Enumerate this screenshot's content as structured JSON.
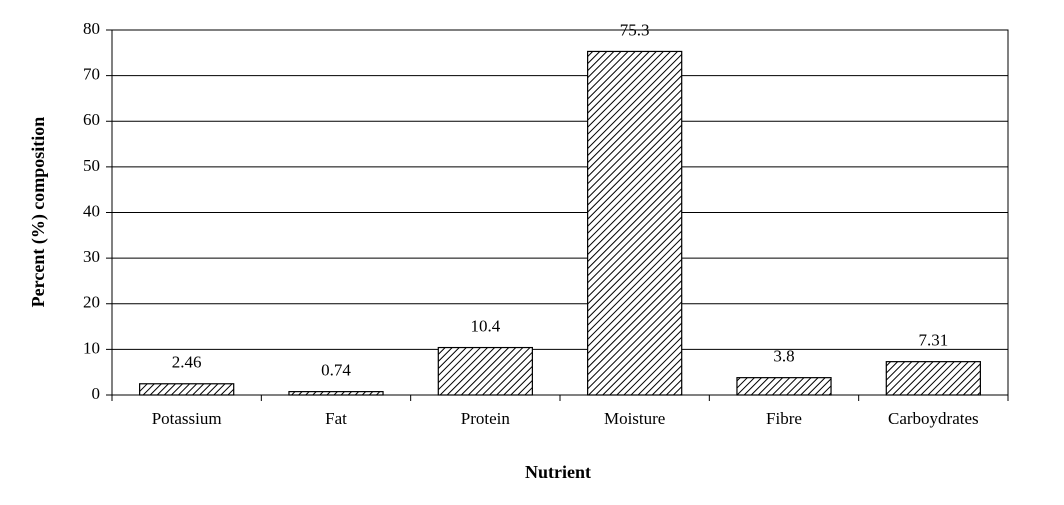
{
  "chart_data": {
    "type": "bar",
    "x_label": "Nutrient",
    "y_label": "Percent (%) composition",
    "categories": [
      "Potassium",
      "Fat",
      "Protein",
      "Moisture",
      "Fibre",
      "Carboydrates"
    ],
    "values": [
      2.46,
      0.74,
      10.4,
      75.3,
      3.8,
      7.31
    ],
    "color": "#000000",
    "ylim": [
      0,
      80
    ],
    "yticks": [
      0,
      10,
      20,
      30,
      40,
      50,
      60,
      70,
      80
    ],
    "grid": true
  }
}
